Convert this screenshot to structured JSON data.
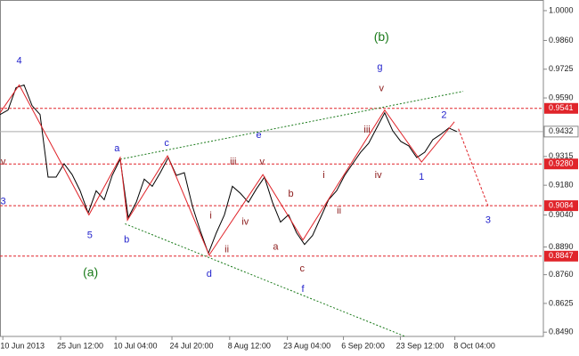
{
  "chart_data": {
    "type": "line",
    "series": [
      {
        "color": "#000000",
        "values": [
          0.9512,
          0.9533,
          0.9638,
          0.9651,
          0.9554,
          0.9512,
          0.9218,
          0.9218,
          0.9281,
          0.923,
          0.9154,
          0.9049,
          0.9154,
          0.9112,
          0.9226,
          0.9302,
          0.9028,
          0.91,
          0.9209,
          0.9175,
          0.9239,
          0.931,
          0.9226,
          0.9239,
          0.9083,
          0.8965,
          0.886,
          0.8957,
          0.9041,
          0.9175,
          0.9142,
          0.91,
          0.9163,
          0.9218,
          0.91,
          0.9007,
          0.9041,
          0.8957,
          0.8902,
          0.8944,
          0.9028,
          0.9112,
          0.9154,
          0.9226,
          0.9281,
          0.9335,
          0.9377,
          0.9449,
          0.952,
          0.9436,
          0.9386,
          0.9365,
          0.931,
          0.9335,
          0.9394,
          0.9419,
          0.9449,
          0.9432
        ]
      }
    ],
    "xlim": [
      0,
      67.8
    ],
    "ylim": [
      0.847,
      1.005
    ],
    "xticks": [
      {
        "value": 2.8,
        "label": "10 Jun 2013"
      },
      {
        "value": 10,
        "label": "25 Jun 12:00"
      },
      {
        "value": 16.9,
        "label": "10 Jul 04:00"
      },
      {
        "value": 23.9,
        "label": "24 Jul 20:00"
      },
      {
        "value": 31.1,
        "label": "8 Aug 12:00"
      },
      {
        "value": 38.3,
        "label": "23 Aug 04:00"
      },
      {
        "value": 45.3,
        "label": "6 Sep 20:00"
      },
      {
        "value": 52.4,
        "label": "23 Sep 12:00"
      },
      {
        "value": 59.2,
        "label": "8 Oct 04:00"
      }
    ],
    "yticks": [
      {
        "value": 1.0,
        "label": "1.0000"
      },
      {
        "value": 0.986,
        "label": "0.9860"
      },
      {
        "value": 0.9725,
        "label": "0.9725"
      },
      {
        "value": 0.959,
        "label": "0.9590"
      },
      {
        "value": 0.9315,
        "label": "0.9315"
      },
      {
        "value": 0.918,
        "label": "0.9180"
      },
      {
        "value": 0.904,
        "label": "0.9040"
      },
      {
        "value": 0.889,
        "label": "0.8890"
      },
      {
        "value": 0.876,
        "label": "0.8760"
      },
      {
        "value": 0.8625,
        "label": "0.8625"
      },
      {
        "value": 0.849,
        "label": "0.8490"
      }
    ],
    "levels": [
      {
        "value": 0.9541,
        "label": "0.9541"
      },
      {
        "value": 0.928,
        "label": "0.9280"
      },
      {
        "value": 0.9084,
        "label": "0.9084"
      },
      {
        "value": 0.8847,
        "label": "0.8847"
      }
    ],
    "level_color": "#e0242a",
    "current_price": {
      "value": 0.9432,
      "label": "0.9432"
    },
    "wave_path": {
      "color": "#e0242a",
      "x": [
        0,
        2.4,
        11.1,
        15,
        15.9,
        20.9,
        26.1,
        32.8,
        37.8,
        48,
        52.6,
        56.7
      ],
      "y": [
        0.952,
        0.9651,
        0.9041,
        0.931,
        0.9016,
        0.9318,
        0.8852,
        0.923,
        0.8923,
        0.9533,
        0.9289,
        0.9478
      ]
    },
    "wave_projection": {
      "color": "#e0242a",
      "x": [
        57.2,
        60.9
      ],
      "y": [
        0.9445,
        0.9083
      ]
    },
    "trendlines": [
      {
        "color": "#1a7a1a",
        "x": [
          15,
          57.8
        ],
        "y": [
          0.9302,
          0.9621
        ]
      },
      {
        "color": "#1a7a1a",
        "x": [
          15.6,
          50.6
        ],
        "y": [
          0.8999,
          0.8469
        ]
      }
    ],
    "annotations": [
      {
        "text": "4",
        "x": 2.4,
        "y": 0.9764,
        "color": "#2222cc"
      },
      {
        "text": "5",
        "x": 11.2,
        "y": 0.8944,
        "color": "#2222cc"
      },
      {
        "text": "a",
        "x": 14.6,
        "y": 0.9352,
        "color": "#2222cc"
      },
      {
        "text": "b",
        "x": 15.8,
        "y": 0.8923,
        "color": "#2222cc"
      },
      {
        "text": "c",
        "x": 20.8,
        "y": 0.9377,
        "color": "#2222cc"
      },
      {
        "text": "d",
        "x": 26.1,
        "y": 0.8763,
        "color": "#2222cc"
      },
      {
        "text": "e",
        "x": 32.3,
        "y": 0.9415,
        "color": "#2222cc"
      },
      {
        "text": "f",
        "x": 37.8,
        "y": 0.8692,
        "color": "#2222cc"
      },
      {
        "text": "c",
        "x": 37.7,
        "y": 0.8788,
        "color": "#8b1a1a"
      },
      {
        "text": "g",
        "x": 47.4,
        "y": 0.9735,
        "color": "#2222cc"
      },
      {
        "text": "1",
        "x": 52.6,
        "y": 0.9218,
        "color": "#2222cc"
      },
      {
        "text": "2",
        "x": 55.4,
        "y": 0.9508,
        "color": "#2222cc"
      },
      {
        "text": "3",
        "x": 60.9,
        "y": 0.9016,
        "color": "#2222cc"
      },
      {
        "text": "3",
        "x": 0.4,
        "y": 0.9103,
        "color": "#2222cc"
      },
      {
        "text": "v",
        "x": 0.4,
        "y": 0.9289,
        "color": "#8b1a1a"
      },
      {
        "text": "iii",
        "x": 29.1,
        "y": 0.9289,
        "color": "#8b1a1a"
      },
      {
        "text": "v",
        "x": 32.7,
        "y": 0.9289,
        "color": "#8b1a1a"
      },
      {
        "text": "iv",
        "x": 30.6,
        "y": 0.9007,
        "color": "#8b1a1a"
      },
      {
        "text": "i",
        "x": 26.3,
        "y": 0.9037,
        "color": "#8b1a1a"
      },
      {
        "text": "ii",
        "x": 28.3,
        "y": 0.8877,
        "color": "#8b1a1a"
      },
      {
        "text": "a",
        "x": 34.4,
        "y": 0.8889,
        "color": "#8b1a1a"
      },
      {
        "text": "b",
        "x": 36.3,
        "y": 0.9138,
        "color": "#8b1a1a"
      },
      {
        "text": "i",
        "x": 40.4,
        "y": 0.9226,
        "color": "#8b1a1a"
      },
      {
        "text": "ii",
        "x": 42.3,
        "y": 0.9058,
        "color": "#8b1a1a"
      },
      {
        "text": "iii",
        "x": 45.8,
        "y": 0.944,
        "color": "#8b1a1a"
      },
      {
        "text": "iv",
        "x": 47.2,
        "y": 0.9226,
        "color": "#8b1a1a"
      },
      {
        "text": "v",
        "x": 47.6,
        "y": 0.9634,
        "color": "#8b1a1a"
      },
      {
        "text": "(b)",
        "x": 47.6,
        "y": 0.9874,
        "color": "#1a7a1a"
      },
      {
        "text": "(a)",
        "x": 11.3,
        "y": 0.8767,
        "color": "#1a7a1a"
      }
    ]
  }
}
